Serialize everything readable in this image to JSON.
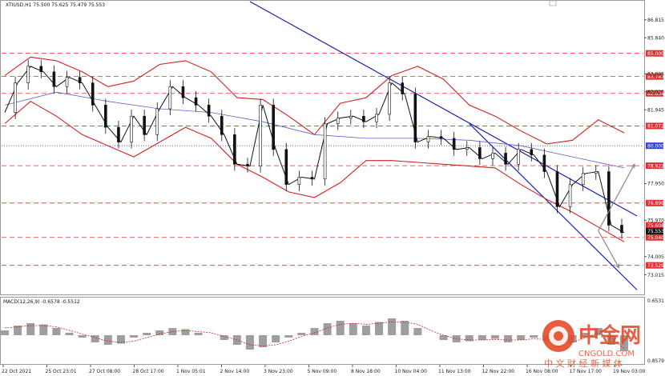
{
  "chart_data": {
    "type": "candlestick",
    "symbol_header": "XTIUSD,H1  75.500 75.625 75.479 75.553",
    "price_axis": {
      "min": 72.0,
      "max": 87.8,
      "ticks": [
        "86.815",
        "85.840",
        "83.895",
        "82.920",
        "81.945",
        "77.950",
        "75.970",
        "74.005",
        "73.015"
      ]
    },
    "horizontal_levels": [
      {
        "label": "85.000",
        "value": 85.0,
        "color": "#e03030"
      },
      {
        "label": "83.747",
        "value": 83.747,
        "color": "#e03030"
      },
      {
        "label": "82.834",
        "value": 82.834,
        "color": "#e03030"
      },
      {
        "label": "81.072",
        "value": 81.072,
        "color": "#e03030"
      },
      {
        "label": "80.000",
        "value": 80.0,
        "color": "#3040e0",
        "dotted": true
      },
      {
        "label": "78.922",
        "value": 78.922,
        "color": "#e03030"
      },
      {
        "label": "76.899",
        "value": 76.899,
        "color": "#e03030"
      },
      {
        "label": "75.040",
        "value": 75.04,
        "color": "#e03030"
      },
      {
        "label": "73.529",
        "value": 73.529,
        "color": "#e03030"
      }
    ],
    "current_price_badges": [
      {
        "label": "75.608",
        "value": 75.608,
        "color": "#e03030"
      },
      {
        "label": "75.553",
        "value": 75.553,
        "color": "#111111"
      }
    ],
    "time_labels": [
      "22 Oct 2021",
      "25 Oct 23:01",
      "27 Oct 08:00",
      "28 Oct 17:00",
      "1 Nov 05:01",
      "2 Nov 14:00",
      "3 Nov 23:00",
      "5 Nov 09:00",
      "8 Nov 18:00",
      "10 Nov 04:00",
      "11 Nov 13:00",
      "12 Nov 22:00",
      "16 Nov 08:00",
      "17 Nov 17:00",
      "19 Nov 03:00"
    ],
    "close_path": [
      [
        0,
        81.8
      ],
      [
        1,
        83.4
      ],
      [
        2,
        84.3
      ],
      [
        3,
        84.0
      ],
      [
        4,
        83.2
      ],
      [
        5,
        83.7
      ],
      [
        6,
        83.4
      ],
      [
        7,
        82.2
      ],
      [
        8,
        81.0
      ],
      [
        9,
        80.2
      ],
      [
        10,
        81.6
      ],
      [
        11,
        80.6
      ],
      [
        12,
        82.0
      ],
      [
        13,
        83.2
      ],
      [
        14,
        82.6
      ],
      [
        15,
        82.2
      ],
      [
        16,
        81.6
      ],
      [
        17,
        80.6
      ],
      [
        18,
        79.0
      ],
      [
        19,
        78.9
      ],
      [
        20,
        82.2
      ],
      [
        21,
        79.8
      ],
      [
        22,
        77.9
      ],
      [
        23,
        78.3
      ],
      [
        24,
        78.2
      ],
      [
        25,
        81.2
      ],
      [
        26,
        81.5
      ],
      [
        27,
        81.6
      ],
      [
        28,
        81.3
      ],
      [
        29,
        81.7
      ],
      [
        30,
        83.4
      ],
      [
        31,
        82.8
      ],
      [
        32,
        80.2
      ],
      [
        33,
        80.5
      ],
      [
        34,
        80.4
      ],
      [
        35,
        79.8
      ],
      [
        36,
        79.9
      ],
      [
        37,
        79.3
      ],
      [
        38,
        79.6
      ],
      [
        39,
        79.0
      ],
      [
        40,
        79.8
      ],
      [
        41,
        79.5
      ],
      [
        42,
        78.6
      ],
      [
        43,
        76.7
      ],
      [
        44,
        77.9
      ],
      [
        45,
        78.5
      ],
      [
        46,
        78.6
      ],
      [
        47,
        75.7
      ],
      [
        48,
        75.3
      ]
    ],
    "upper_band": [
      [
        0,
        83.8
      ],
      [
        2,
        84.8
      ],
      [
        4,
        84.6
      ],
      [
        6,
        84.0
      ],
      [
        8,
        83.2
      ],
      [
        10,
        83.5
      ],
      [
        12,
        84.4
      ],
      [
        14,
        84.6
      ],
      [
        16,
        84.0
      ],
      [
        18,
        82.6
      ],
      [
        20,
        82.5
      ],
      [
        22,
        81.6
      ],
      [
        24,
        80.6
      ],
      [
        26,
        82.3
      ],
      [
        28,
        82.6
      ],
      [
        30,
        83.8
      ],
      [
        32,
        84.3
      ],
      [
        34,
        83.6
      ],
      [
        36,
        82.2
      ],
      [
        38,
        81.6
      ],
      [
        40,
        80.8
      ],
      [
        42,
        80.1
      ],
      [
        44,
        80.3
      ],
      [
        46,
        81.4
      ],
      [
        48,
        80.7
      ]
    ],
    "lower_band": [
      [
        0,
        81.2
      ],
      [
        2,
        82.4
      ],
      [
        4,
        81.6
      ],
      [
        6,
        80.6
      ],
      [
        8,
        80.0
      ],
      [
        10,
        79.4
      ],
      [
        12,
        80.2
      ],
      [
        14,
        81.0
      ],
      [
        16,
        80.4
      ],
      [
        18,
        79.0
      ],
      [
        20,
        78.3
      ],
      [
        22,
        77.5
      ],
      [
        24,
        77.2
      ],
      [
        26,
        78.0
      ],
      [
        28,
        79.2
      ],
      [
        30,
        79.2
      ],
      [
        32,
        79.1
      ],
      [
        34,
        79.0
      ],
      [
        36,
        78.9
      ],
      [
        38,
        78.8
      ],
      [
        40,
        77.9
      ],
      [
        42,
        77.1
      ],
      [
        44,
        76.4
      ],
      [
        46,
        75.6
      ],
      [
        48,
        74.8
      ]
    ],
    "moving_average": [
      [
        0,
        82.2
      ],
      [
        4,
        82.9
      ],
      [
        8,
        82.4
      ],
      [
        12,
        82.0
      ],
      [
        16,
        81.8
      ],
      [
        20,
        81.3
      ],
      [
        24,
        80.6
      ],
      [
        28,
        80.4
      ],
      [
        32,
        80.4
      ],
      [
        36,
        80.3
      ],
      [
        40,
        80.0
      ],
      [
        44,
        79.4
      ],
      [
        48,
        78.8
      ]
    ],
    "channel_lines": [
      {
        "from": [
          19,
          87.8
        ],
        "to": [
          49,
          76.2
        ]
      },
      {
        "from": [
          36,
          81.2
        ],
        "to": [
          49,
          72.2
        ]
      }
    ],
    "projection_arrows": [
      {
        "from": [
          46,
          75.4
        ],
        "to": [
          48.8,
          79.0
        ]
      },
      {
        "from": [
          46,
          75.4
        ],
        "to": [
          47.6,
          73.4
        ]
      }
    ],
    "macd": {
      "label": "MACD(12,26,9) -0.6578 -0.5512",
      "ticks": [
        "0.6531",
        "0.8579"
      ],
      "histogram": [
        0.2,
        0.4,
        0.5,
        0.45,
        0.3,
        0.1,
        -0.1,
        -0.3,
        -0.4,
        -0.35,
        -0.1,
        0.1,
        0.2,
        0.3,
        0.25,
        0.1,
        0.0,
        -0.2,
        -0.4,
        -0.6,
        -0.5,
        -0.3,
        -0.1,
        0.1,
        0.3,
        0.5,
        0.6,
        0.5,
        0.4,
        0.55,
        0.7,
        0.6,
        0.3,
        0.0,
        -0.2,
        -0.3,
        -0.25,
        -0.2,
        -0.15,
        -0.3,
        -0.2,
        -0.1,
        -0.25,
        -0.5,
        -0.3,
        0.1,
        0.3,
        -0.4,
        -0.66
      ],
      "signal": [
        0.3,
        0.35,
        0.4,
        0.4,
        0.35,
        0.2,
        0.05,
        -0.1,
        -0.25,
        -0.3,
        -0.25,
        -0.1,
        0.05,
        0.15,
        0.2,
        0.15,
        0.1,
        -0.05,
        -0.2,
        -0.4,
        -0.45,
        -0.4,
        -0.25,
        -0.05,
        0.1,
        0.3,
        0.45,
        0.5,
        0.45,
        0.5,
        0.55,
        0.55,
        0.45,
        0.2,
        0.0,
        -0.15,
        -0.2,
        -0.2,
        -0.18,
        -0.2,
        -0.2,
        -0.15,
        -0.18,
        -0.3,
        -0.3,
        -0.1,
        0.1,
        -0.1,
        -0.55
      ]
    }
  },
  "watermark": {
    "brand": "中金网",
    "url": "CNGOLD.COM",
    "slogan": "中 文 财 经 新 媒 体"
  }
}
